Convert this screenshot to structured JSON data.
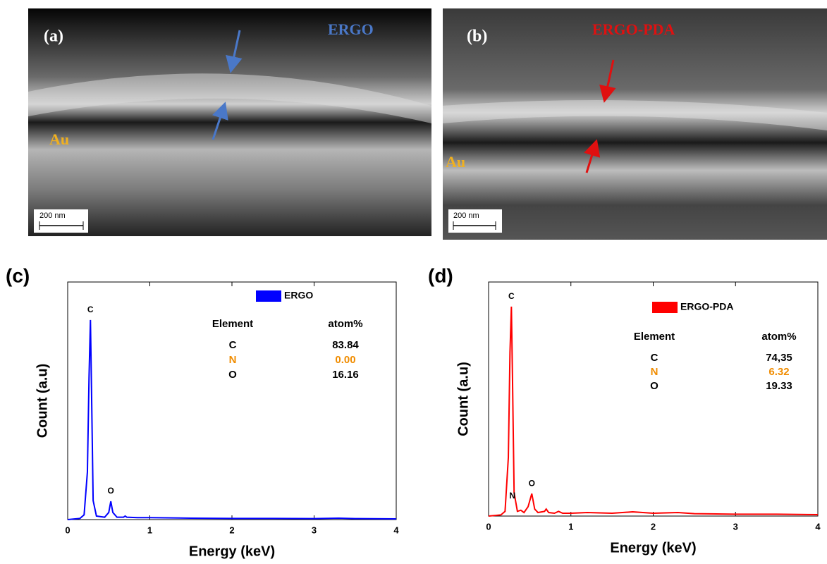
{
  "images": [
    {
      "label": "(a)",
      "title": "ERGO",
      "substrate": "Au",
      "scale": "200 nm"
    },
    {
      "label": "(b)",
      "title": "ERGO-PDA",
      "substrate": "Au",
      "scale": "200 nm"
    }
  ],
  "chart_data": [
    {
      "type": "line",
      "panel": "(c)",
      "xlabel": "Energy (keV)",
      "ylabel": "Count (a.u)",
      "xlim": [
        0,
        4
      ],
      "xticks": [
        0,
        1,
        2,
        3,
        4
      ],
      "ylim": [
        0,
        100
      ],
      "x": [
        0,
        0.15,
        0.2,
        0.24,
        0.26,
        0.277,
        0.29,
        0.31,
        0.35,
        0.45,
        0.5,
        0.525,
        0.55,
        0.6,
        0.68,
        0.7,
        0.72,
        0.85,
        1.0,
        1.5,
        2.0,
        2.5,
        3.0,
        3.3,
        3.5,
        4.0
      ],
      "series": [
        {
          "name": "ERGO",
          "color": "#0000ff",
          "values": [
            0,
            0.5,
            2,
            20,
            60,
            84,
            55,
            8,
            1.5,
            1,
            3,
            7.7,
            3,
            1,
            1,
            1.5,
            1,
            0.8,
            0.8,
            0.6,
            0.5,
            0.5,
            0.4,
            0.6,
            0.4,
            0.3
          ]
        }
      ],
      "peak_labels": [
        {
          "text": "C",
          "x": 0.277
        },
        {
          "text": "O",
          "x": 0.525
        }
      ],
      "table": {
        "header": [
          "Element",
          "atom%"
        ],
        "rows": [
          [
            "C",
            "83.84"
          ],
          [
            "N",
            "0.00"
          ],
          [
            "O",
            "16.16"
          ]
        ],
        "row_colors": [
          "#000000",
          "#f08c00",
          "#000000"
        ]
      }
    },
    {
      "type": "line",
      "panel": "(d)",
      "xlabel": "Energy (keV)",
      "ylabel": "Count (a.u)",
      "xlim": [
        0,
        4
      ],
      "xticks": [
        0,
        1,
        2,
        3,
        4
      ],
      "ylim": [
        0,
        100
      ],
      "x": [
        0,
        0.15,
        0.2,
        0.24,
        0.26,
        0.277,
        0.29,
        0.31,
        0.35,
        0.392,
        0.43,
        0.48,
        0.525,
        0.56,
        0.6,
        0.68,
        0.7,
        0.73,
        0.8,
        0.85,
        0.9,
        1.0,
        1.2,
        1.5,
        1.75,
        2.0,
        2.3,
        2.5,
        3.0,
        3.5,
        4.0
      ],
      "series": [
        {
          "name": "ERGO-PDA",
          "color": "#ff0000",
          "values": [
            0,
            0.5,
            2,
            25,
            70,
            89.5,
            60,
            10,
            2,
            2.5,
            1.5,
            4,
            9.6,
            3,
            1.5,
            2,
            3,
            1.5,
            1.2,
            2,
            1.2,
            1.2,
            1.5,
            1.2,
            1.8,
            1.2,
            1.5,
            1,
            0.8,
            0.8,
            0.6
          ]
        }
      ],
      "peak_labels": [
        {
          "text": "C",
          "x": 0.277
        },
        {
          "text": "N",
          "x": 0.392
        },
        {
          "text": "O",
          "x": 0.525
        }
      ],
      "table": {
        "header": [
          "Element",
          "atom%"
        ],
        "rows": [
          [
            "C",
            "74,35"
          ],
          [
            "N",
            "6.32"
          ],
          [
            "O",
            "19.33"
          ]
        ],
        "row_colors": [
          "#000000",
          "#f08c00",
          "#000000"
        ]
      }
    }
  ]
}
